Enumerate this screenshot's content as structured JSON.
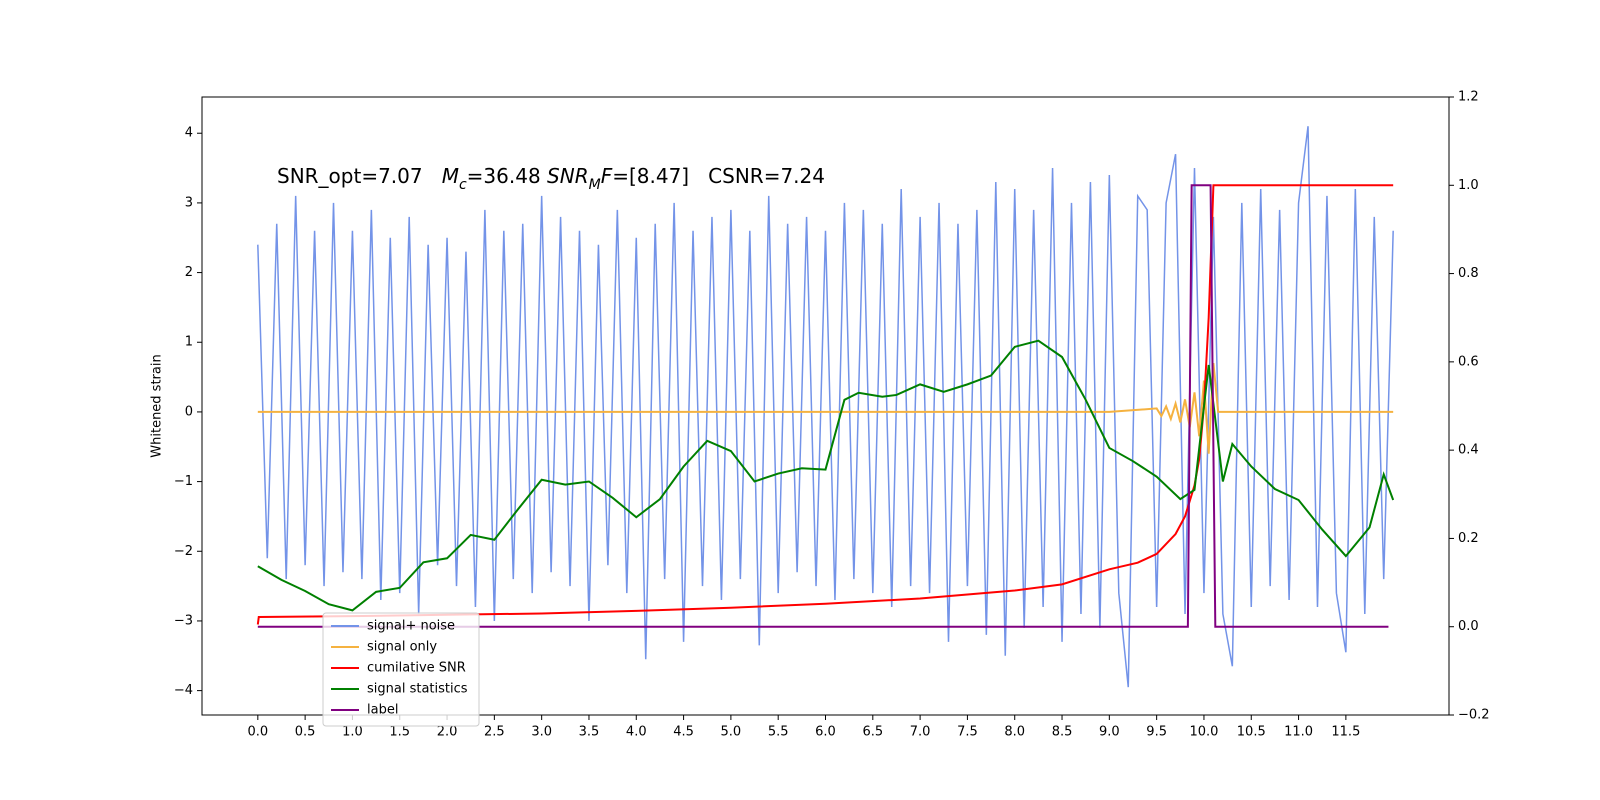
{
  "chart_data": {
    "type": "line",
    "ylabel": "Whitened strain",
    "xlim": [
      -0.59,
      12.59
    ],
    "ylim": [
      -4.35,
      4.52
    ],
    "y2lim": [
      -0.2,
      1.2
    ],
    "xticks": [
      {
        "value": 0,
        "label": "0.0"
      },
      {
        "value": 0.5,
        "label": "0.5"
      },
      {
        "value": 1,
        "label": "1.0"
      },
      {
        "value": 1.5,
        "label": "1.5"
      },
      {
        "value": 2,
        "label": "2.0"
      },
      {
        "value": 2.5,
        "label": "2.5"
      },
      {
        "value": 3,
        "label": "3.0"
      },
      {
        "value": 3.5,
        "label": "3.5"
      },
      {
        "value": 4,
        "label": "4.0"
      },
      {
        "value": 4.5,
        "label": "4.5"
      },
      {
        "value": 5,
        "label": "5.0"
      },
      {
        "value": 5.5,
        "label": "5.5"
      },
      {
        "value": 6,
        "label": "6.0"
      },
      {
        "value": 6.5,
        "label": "6.5"
      },
      {
        "value": 7,
        "label": "7.0"
      },
      {
        "value": 7.5,
        "label": "7.5"
      },
      {
        "value": 8,
        "label": "8.0"
      },
      {
        "value": 8.5,
        "label": "8.5"
      },
      {
        "value": 9,
        "label": "9.0"
      },
      {
        "value": 9.5,
        "label": "9.5"
      },
      {
        "value": 10,
        "label": "10.0"
      },
      {
        "value": 10.5,
        "label": "10.5"
      },
      {
        "value": 11,
        "label": "11.0"
      },
      {
        "value": 11.5,
        "label": "11.5"
      }
    ],
    "yticks": [
      {
        "value": -4,
        "label": "−4"
      },
      {
        "value": -3,
        "label": "−3"
      },
      {
        "value": -2,
        "label": "−2"
      },
      {
        "value": -1,
        "label": "−1"
      },
      0,
      1,
      2,
      3,
      4
    ],
    "y2ticks": [
      {
        "value": -0.2,
        "label": "−0.2"
      },
      {
        "value": 0,
        "label": "0.0"
      },
      0.2,
      0.4,
      0.6,
      0.8,
      {
        "value": 1,
        "label": "1.0"
      },
      1.2
    ],
    "annotation": [
      {
        "text": "SNR_opt=7.07   "
      },
      {
        "text": "M",
        "italic": true
      },
      {
        "text": "c",
        "italic": true,
        "sub": true
      },
      {
        "text": "=36.48 "
      },
      {
        "text": "SNR",
        "italic": true
      },
      {
        "text": "M",
        "italic": true,
        "sub": true
      },
      {
        "text": "F",
        "italic": true
      },
      {
        "text": "=[8.47]   CSNR=7.24"
      }
    ],
    "legend": "lower left",
    "series": [
      {
        "name": "signal+ noise",
        "color": "#7393e8",
        "x": [
          0,
          0.1,
          0.2,
          0.3,
          0.4,
          0.5,
          0.6,
          0.7,
          0.8,
          0.9,
          1,
          1.1,
          1.2,
          1.3,
          1.4,
          1.5,
          1.6,
          1.7,
          1.8,
          1.9,
          2,
          2.1,
          2.2,
          2.3,
          2.4,
          2.5,
          2.6,
          2.7,
          2.8,
          2.9,
          3,
          3.1,
          3.2,
          3.3,
          3.4,
          3.5,
          3.6,
          3.7,
          3.8,
          3.9,
          4,
          4.1,
          4.2,
          4.3,
          4.4,
          4.5,
          4.6,
          4.7,
          4.8,
          4.9,
          5,
          5.1,
          5.2,
          5.3,
          5.4,
          5.5,
          5.6,
          5.7,
          5.8,
          5.9,
          6,
          6.1,
          6.2,
          6.3,
          6.4,
          6.5,
          6.6,
          6.7,
          6.8,
          6.9,
          7,
          7.1,
          7.2,
          7.3,
          7.4,
          7.5,
          7.6,
          7.7,
          7.8,
          7.9,
          8,
          8.1,
          8.2,
          8.3,
          8.4,
          8.5,
          8.6,
          8.7,
          8.8,
          8.9,
          9,
          9.1,
          9.2,
          9.3,
          9.4,
          9.5,
          9.6,
          9.7,
          9.8,
          9.9,
          10,
          10.1,
          10.2,
          10.3,
          10.4,
          10.5,
          10.6,
          10.7,
          10.8,
          10.9,
          11,
          11.1,
          11.2,
          11.3,
          11.4,
          11.5,
          11.6,
          11.7,
          11.8,
          11.9,
          12
        ],
        "values": [
          2.4,
          -2.1,
          2.7,
          -2.4,
          3.1,
          -2.2,
          2.6,
          -2.5,
          3.0,
          -2.3,
          2.6,
          -2.4,
          2.9,
          -2.7,
          2.5,
          -2.6,
          2.8,
          -2.9,
          2.4,
          -2.2,
          2.5,
          -2.5,
          2.3,
          -2.8,
          2.9,
          -3.0,
          2.6,
          -2.4,
          2.7,
          -2.6,
          3.1,
          -2.3,
          2.8,
          -2.5,
          2.6,
          -3.0,
          2.4,
          -2.2,
          2.9,
          -2.6,
          2.5,
          -3.55,
          2.7,
          -2.4,
          3.0,
          -3.3,
          2.6,
          -2.5,
          2.8,
          -2.7,
          2.9,
          -2.4,
          2.6,
          -3.35,
          3.1,
          -2.6,
          2.7,
          -2.3,
          2.8,
          -2.5,
          2.6,
          -2.7,
          3.0,
          -2.4,
          2.9,
          -2.6,
          2.7,
          -2.8,
          3.2,
          -2.5,
          2.8,
          -2.6,
          3.0,
          -3.3,
          2.7,
          -2.5,
          2.9,
          -3.2,
          3.3,
          -3.5,
          3.2,
          -3.1,
          2.9,
          -2.8,
          3.5,
          -3.3,
          3.0,
          -2.9,
          3.3,
          -3.1,
          3.4,
          -2.6,
          -3.95,
          3.1,
          2.9,
          -2.8,
          3.0,
          3.7,
          -2.9,
          3.5,
          -2.6,
          2.8,
          -2.9,
          -3.65,
          3.0,
          -2.8,
          3.2,
          -2.5,
          2.9,
          -2.7,
          3.0,
          4.1,
          -2.8,
          3.1,
          -2.6,
          -3.45,
          3.2,
          -2.9,
          2.8,
          -2.4,
          2.6
        ]
      },
      {
        "name": "signal only",
        "color": "#f5b240",
        "x": [
          0,
          9.0,
          9.5,
          9.55,
          9.6,
          9.65,
          9.7,
          9.75,
          9.8,
          9.85,
          9.9,
          9.95,
          10.0,
          10.05,
          10.1,
          10.15,
          12.0
        ],
        "values": [
          0,
          0,
          0.05,
          -0.06,
          0.08,
          -0.1,
          0.12,
          -0.15,
          0.18,
          -0.22,
          0.28,
          -0.35,
          0.45,
          -0.6,
          0.7,
          0,
          0
        ]
      },
      {
        "name": "cumilative SNR",
        "color": "#ff0000",
        "axis": "y2",
        "x": [
          0,
          0.01,
          1,
          2,
          3,
          4,
          5,
          6,
          7,
          8,
          8.5,
          9,
          9.3,
          9.5,
          9.7,
          9.8,
          9.9,
          9.95,
          10.0,
          10.05,
          10.1,
          12.0
        ],
        "values": [
          0.005,
          0.022,
          0.024,
          0.027,
          0.03,
          0.036,
          0.043,
          0.052,
          0.064,
          0.082,
          0.096,
          0.13,
          0.145,
          0.165,
          0.21,
          0.25,
          0.32,
          0.38,
          0.5,
          0.7,
          1.0,
          1.0
        ]
      },
      {
        "name": "signal statistics",
        "color": "#008000",
        "axis": "y2",
        "x": [
          0,
          0.25,
          0.5,
          0.75,
          1.0,
          1.25,
          1.5,
          1.75,
          2.0,
          2.25,
          2.5,
          2.75,
          3.0,
          3.25,
          3.5,
          3.75,
          4.0,
          4.25,
          4.5,
          4.75,
          5.0,
          5.25,
          5.5,
          5.75,
          6.0,
          6.2,
          6.35,
          6.6,
          6.75,
          7.0,
          7.25,
          7.5,
          7.75,
          8.0,
          8.25,
          8.5,
          8.75,
          9.0,
          9.25,
          9.5,
          9.75,
          9.9,
          10.05,
          10.2,
          10.3,
          10.5,
          10.75,
          11.0,
          11.25,
          11.5,
          11.75,
          11.9,
          12.0
        ],
        "values": [
          0.137,
          0.106,
          0.081,
          0.051,
          0.037,
          0.079,
          0.088,
          0.146,
          0.155,
          0.208,
          0.197,
          0.266,
          0.333,
          0.322,
          0.329,
          0.292,
          0.248,
          0.289,
          0.363,
          0.421,
          0.398,
          0.329,
          0.347,
          0.359,
          0.356,
          0.514,
          0.53,
          0.521,
          0.525,
          0.549,
          0.532,
          0.549,
          0.569,
          0.634,
          0.648,
          0.611,
          0.514,
          0.405,
          0.375,
          0.34,
          0.289,
          0.31,
          0.593,
          0.329,
          0.414,
          0.363,
          0.312,
          0.287,
          0.22,
          0.16,
          0.225,
          0.345,
          0.287
        ]
      },
      {
        "name": "label",
        "color": "#800080",
        "axis": "y2",
        "x": [
          0,
          9.83,
          9.87,
          10.07,
          10.12,
          11.95
        ],
        "values": [
          0,
          0,
          1,
          1,
          0,
          0
        ]
      }
    ]
  }
}
